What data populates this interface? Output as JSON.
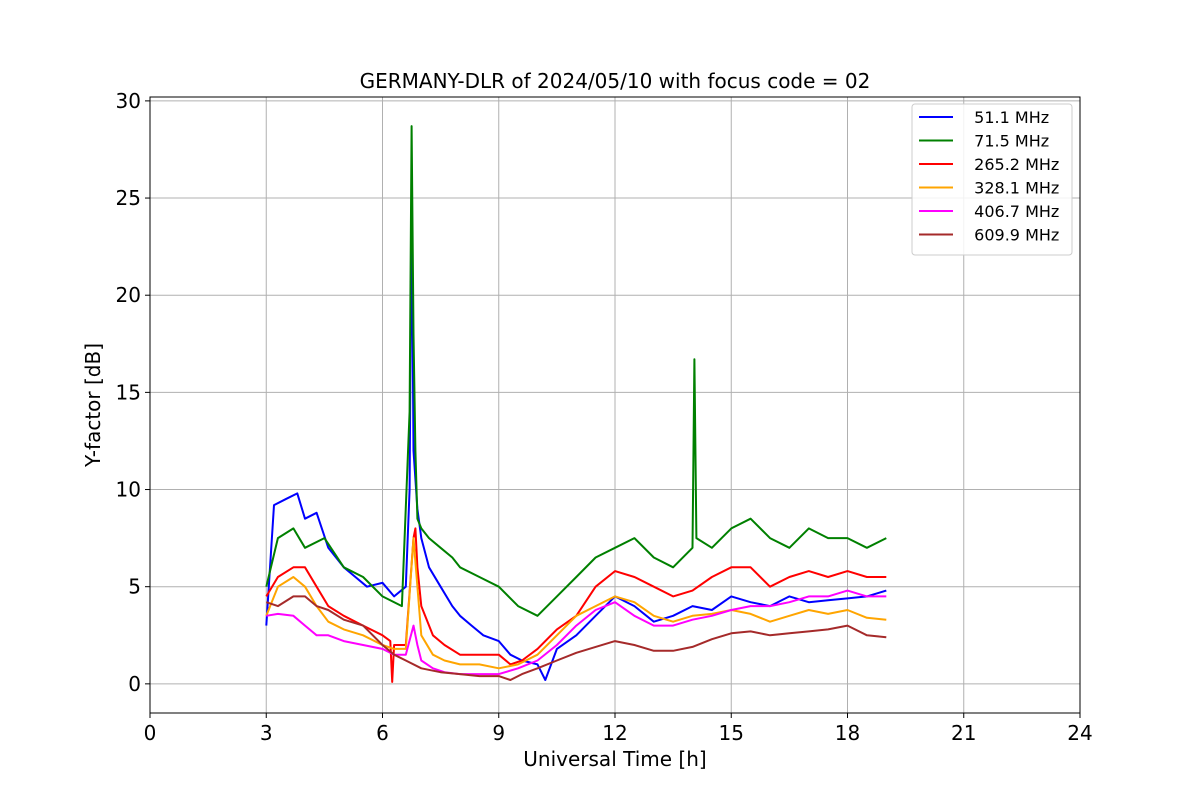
{
  "chart_data": {
    "type": "line",
    "title": "GERMANY-DLR of 2024/05/10 with focus code = 02",
    "xlabel": "Universal Time [h]",
    "ylabel": "Y-factor [dB]",
    "xlim": [
      0,
      24
    ],
    "ylim": [
      -1.5,
      30.2
    ],
    "x_ticks": [
      0,
      3,
      6,
      9,
      12,
      15,
      18,
      21,
      24
    ],
    "y_ticks": [
      0,
      5,
      10,
      15,
      20,
      25,
      30
    ],
    "grid": true,
    "legend_position": "top-right",
    "series": [
      {
        "name": "  51.1 MHz",
        "color": "#0000ff",
        "x": [
          3.0,
          3.2,
          3.5,
          3.8,
          4.0,
          4.3,
          4.6,
          5.0,
          5.3,
          5.6,
          6.0,
          6.3,
          6.6,
          6.7,
          6.75,
          6.8,
          6.9,
          7.0,
          7.2,
          7.5,
          7.8,
          8.0,
          8.3,
          8.6,
          9.0,
          9.3,
          9.6,
          10.0,
          10.2,
          10.5,
          11.0,
          11.5,
          12.0,
          12.5,
          13.0,
          13.5,
          14.0,
          14.5,
          15.0,
          15.5,
          16.0,
          16.5,
          17.0,
          17.5,
          18.0,
          18.5,
          19.0
        ],
        "y": [
          3.0,
          9.2,
          9.5,
          9.8,
          8.5,
          8.8,
          7.0,
          6.0,
          5.5,
          5.0,
          5.2,
          4.5,
          5.0,
          10.0,
          25.3,
          12.0,
          9.0,
          7.5,
          6.0,
          5.0,
          4.0,
          3.5,
          3.0,
          2.5,
          2.2,
          1.5,
          1.2,
          1.0,
          0.2,
          1.8,
          2.5,
          3.5,
          4.5,
          4.0,
          3.2,
          3.5,
          4.0,
          3.8,
          4.5,
          4.2,
          4.0,
          4.5,
          4.2,
          4.3,
          4.4,
          4.5,
          4.8
        ]
      },
      {
        "name": "  71.5 MHz",
        "color": "#008000",
        "x": [
          3.0,
          3.3,
          3.7,
          4.0,
          4.5,
          5.0,
          5.5,
          6.0,
          6.5,
          6.7,
          6.75,
          6.8,
          6.85,
          6.9,
          7.0,
          7.2,
          7.5,
          7.8,
          8.0,
          8.5,
          9.0,
          9.5,
          10.0,
          10.5,
          11.0,
          11.5,
          12.0,
          12.5,
          13.0,
          13.5,
          14.0,
          14.05,
          14.1,
          14.5,
          15.0,
          15.5,
          16.0,
          16.5,
          17.0,
          17.5,
          18.0,
          18.5,
          19.0
        ],
        "y": [
          5.0,
          7.5,
          8.0,
          7.0,
          7.5,
          6.0,
          5.5,
          4.5,
          4.0,
          14.0,
          28.7,
          18.0,
          12.0,
          8.5,
          8.0,
          7.5,
          7.0,
          6.5,
          6.0,
          5.5,
          5.0,
          4.0,
          3.5,
          4.5,
          5.5,
          6.5,
          7.0,
          7.5,
          6.5,
          6.0,
          7.0,
          16.7,
          7.5,
          7.0,
          8.0,
          8.5,
          7.5,
          7.0,
          8.0,
          7.5,
          7.5,
          7.0,
          7.5
        ]
      },
      {
        "name": "  265.2 MHz",
        "color": "#ff0000",
        "x": [
          3.0,
          3.3,
          3.7,
          4.0,
          4.3,
          4.6,
          5.0,
          5.5,
          6.0,
          6.2,
          6.25,
          6.3,
          6.6,
          6.8,
          6.85,
          6.9,
          7.0,
          7.3,
          7.6,
          8.0,
          8.5,
          9.0,
          9.3,
          9.6,
          10.0,
          10.5,
          11.0,
          11.5,
          12.0,
          12.5,
          13.0,
          13.5,
          14.0,
          14.5,
          15.0,
          15.5,
          16.0,
          16.5,
          17.0,
          17.5,
          18.0,
          18.5,
          19.0
        ],
        "y": [
          4.5,
          5.5,
          6.0,
          6.0,
          5.0,
          4.0,
          3.5,
          3.0,
          2.5,
          2.2,
          0.1,
          2.0,
          2.0,
          7.5,
          8.0,
          6.0,
          4.0,
          2.5,
          2.0,
          1.5,
          1.5,
          1.5,
          1.0,
          1.2,
          1.8,
          2.8,
          3.5,
          5.0,
          5.8,
          5.5,
          5.0,
          4.5,
          4.8,
          5.5,
          6.0,
          6.0,
          5.0,
          5.5,
          5.8,
          5.5,
          5.8,
          5.5,
          5.5
        ]
      },
      {
        "name": "  328.1 MHz",
        "color": "#ffa500",
        "x": [
          3.0,
          3.3,
          3.7,
          4.0,
          4.3,
          4.6,
          5.0,
          5.5,
          6.0,
          6.3,
          6.6,
          6.8,
          6.9,
          7.0,
          7.3,
          7.6,
          8.0,
          8.5,
          9.0,
          9.5,
          10.0,
          10.5,
          11.0,
          11.5,
          12.0,
          12.5,
          13.0,
          13.5,
          14.0,
          14.5,
          15.0,
          15.5,
          16.0,
          16.5,
          17.0,
          17.5,
          18.0,
          18.5,
          19.0
        ],
        "y": [
          3.5,
          5.0,
          5.5,
          5.0,
          4.0,
          3.2,
          2.8,
          2.5,
          2.0,
          1.8,
          1.8,
          7.5,
          5.0,
          2.5,
          1.5,
          1.2,
          1.0,
          1.0,
          0.8,
          1.0,
          1.5,
          2.5,
          3.5,
          4.0,
          4.5,
          4.2,
          3.5,
          3.2,
          3.5,
          3.6,
          3.8,
          3.6,
          3.2,
          3.5,
          3.8,
          3.6,
          3.8,
          3.4,
          3.3
        ]
      },
      {
        "name": "  406.7 MHz",
        "color": "#ff00ff",
        "x": [
          3.0,
          3.3,
          3.7,
          4.0,
          4.3,
          4.6,
          5.0,
          5.5,
          6.0,
          6.3,
          6.6,
          6.8,
          6.9,
          7.0,
          7.3,
          7.6,
          8.0,
          8.5,
          9.0,
          9.5,
          10.0,
          10.5,
          11.0,
          11.5,
          12.0,
          12.5,
          13.0,
          13.5,
          14.0,
          14.5,
          15.0,
          15.5,
          16.0,
          16.5,
          17.0,
          17.5,
          18.0,
          18.5,
          19.0
        ],
        "y": [
          3.5,
          3.6,
          3.5,
          3.0,
          2.5,
          2.5,
          2.2,
          2.0,
          1.8,
          1.5,
          1.5,
          3.0,
          2.0,
          1.2,
          0.8,
          0.6,
          0.5,
          0.5,
          0.5,
          0.8,
          1.2,
          2.0,
          3.0,
          3.8,
          4.2,
          3.5,
          3.0,
          3.0,
          3.3,
          3.5,
          3.8,
          4.0,
          4.0,
          4.2,
          4.5,
          4.5,
          4.8,
          4.5,
          4.5
        ]
      },
      {
        "name": "  609.9 MHz",
        "color": "#a52a2a",
        "x": [
          3.0,
          3.3,
          3.7,
          4.0,
          4.3,
          4.6,
          5.0,
          5.5,
          6.0,
          6.3,
          6.6,
          7.0,
          7.5,
          8.0,
          8.5,
          9.0,
          9.3,
          9.6,
          10.0,
          10.5,
          11.0,
          11.5,
          12.0,
          12.5,
          13.0,
          13.5,
          14.0,
          14.5,
          15.0,
          15.5,
          16.0,
          16.5,
          17.0,
          17.5,
          18.0,
          18.5,
          19.0
        ],
        "y": [
          4.2,
          4.0,
          4.5,
          4.5,
          4.0,
          3.8,
          3.3,
          3.0,
          2.0,
          1.5,
          1.2,
          0.8,
          0.6,
          0.5,
          0.4,
          0.4,
          0.2,
          0.5,
          0.8,
          1.2,
          1.6,
          1.9,
          2.2,
          2.0,
          1.7,
          1.7,
          1.9,
          2.3,
          2.6,
          2.7,
          2.5,
          2.6,
          2.7,
          2.8,
          3.0,
          2.5,
          2.4
        ]
      }
    ]
  }
}
